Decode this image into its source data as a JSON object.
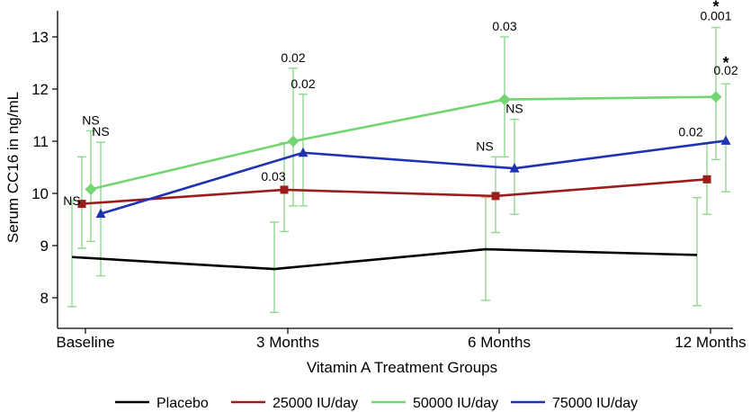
{
  "chart_data": {
    "type": "line",
    "title": "",
    "xlabel": "Vitamin A Treatment Groups",
    "ylabel": "Serum CC16 in ng/mL",
    "ylim": [
      7.6,
      13.5
    ],
    "yticks": [
      8,
      9,
      10,
      11,
      12,
      13
    ],
    "categories": [
      "Baseline",
      "3 Months",
      "6 Months",
      "12 Months"
    ],
    "legend_position": "bottom",
    "grid": false,
    "error_bar_color": "#90d890",
    "series": [
      {
        "name": "Placebo",
        "color": "#000000",
        "marker": "circle",
        "values": [
          8.78,
          8.55,
          8.93,
          8.82
        ],
        "err_low": [
          7.83,
          7.72,
          7.95,
          7.85
        ],
        "err_high": [
          9.86,
          9.45,
          9.92,
          9.92
        ],
        "annotations": [
          "",
          "",
          "",
          ""
        ]
      },
      {
        "name": "25000 IU/day",
        "color": "#9c1c1c",
        "marker": "square",
        "values": [
          9.8,
          10.07,
          9.95,
          10.27
        ],
        "err_low": [
          8.95,
          9.27,
          9.25,
          9.6
        ],
        "err_high": [
          10.7,
          10.97,
          10.7,
          10.97
        ],
        "annotations": [
          "NS",
          "0.03",
          "NS",
          "0.02"
        ]
      },
      {
        "name": "50000 IU/day",
        "color": "#72d572",
        "marker": "diamond",
        "values": [
          10.08,
          11.0,
          11.8,
          11.85
        ],
        "err_low": [
          9.08,
          9.76,
          10.7,
          10.65
        ],
        "err_high": [
          11.2,
          12.4,
          13.0,
          13.18
        ],
        "annotations": [
          "NS",
          "0.02",
          "0.03",
          "0.001"
        ]
      },
      {
        "name": "75000 IU/day",
        "color": "#2032b4",
        "marker": "triangle",
        "values": [
          9.61,
          10.78,
          10.48,
          11.01
        ],
        "err_low": [
          8.42,
          9.76,
          9.6,
          10.03
        ],
        "err_high": [
          10.98,
          11.9,
          11.42,
          12.1
        ],
        "annotations": [
          "NS",
          "0.02",
          "NS",
          "0.02"
        ]
      }
    ],
    "significance_marks": [
      {
        "series": "50000 IU/day",
        "category": "12 Months",
        "symbol": "*"
      },
      {
        "series": "75000 IU/day",
        "category": "12 Months",
        "symbol": "*"
      }
    ]
  }
}
